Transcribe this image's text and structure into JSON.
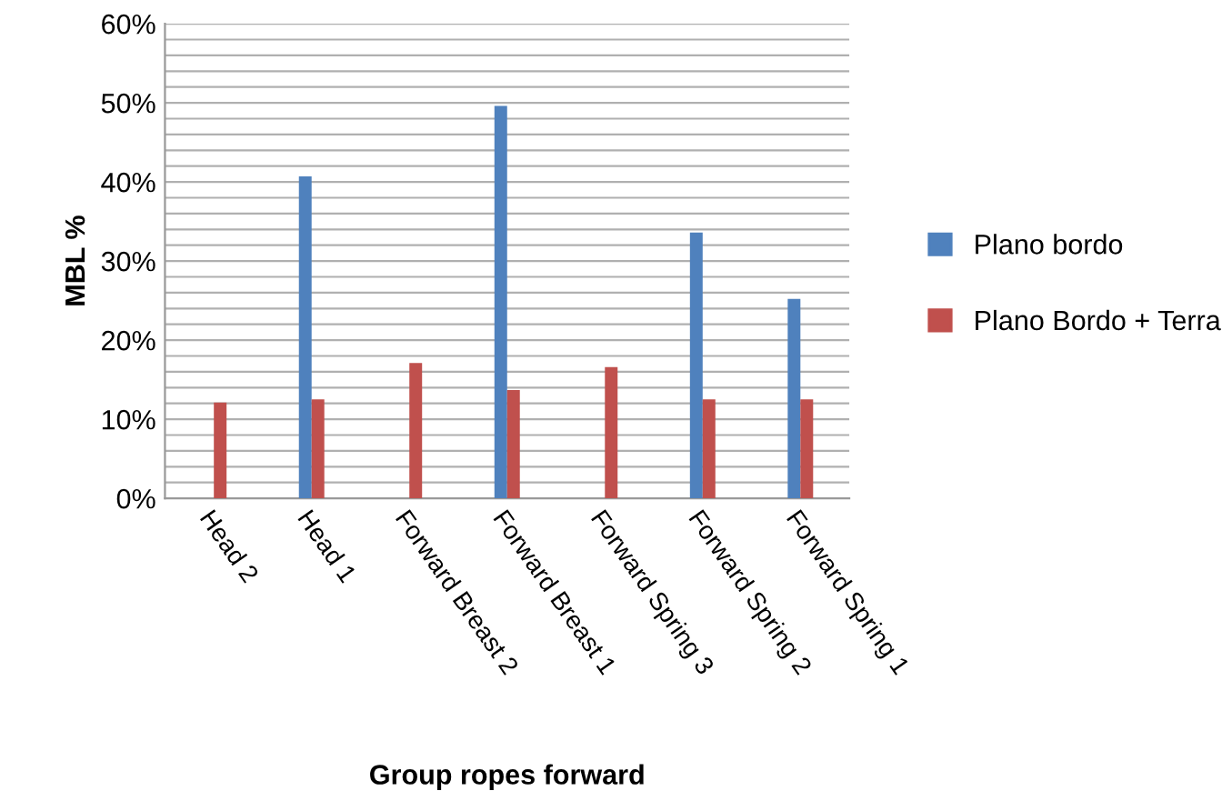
{
  "chart_data": {
    "type": "bar",
    "xlabel": "Group ropes forward",
    "ylabel": "MBL %",
    "categories": [
      "Head 2",
      "Head 1",
      "Forward Breast 2",
      "Forward Breast 1",
      "Forward Spring 3",
      "Forward Spring 2",
      "Forward Spring 1"
    ],
    "series": [
      {
        "name": "Plano bordo",
        "color": "#4f81bd",
        "values": [
          null,
          40.7,
          null,
          49.6,
          null,
          33.6,
          25.2
        ]
      },
      {
        "name": "Plano Bordo + Terra",
        "color": "#c0504d",
        "values": [
          12.1,
          12.5,
          17.1,
          13.7,
          16.6,
          12.5,
          12.5
        ]
      }
    ],
    "ylim": [
      0,
      60
    ],
    "yticks": [
      {
        "value": 0,
        "label": "0%"
      },
      {
        "value": 2,
        "label": null
      },
      {
        "value": 4,
        "label": null
      },
      {
        "value": 6,
        "label": null
      },
      {
        "value": 8,
        "label": null
      },
      {
        "value": 10,
        "label": "10%"
      },
      {
        "value": 12,
        "label": null
      },
      {
        "value": 14,
        "label": null
      },
      {
        "value": 16,
        "label": null
      },
      {
        "value": 18,
        "label": null
      },
      {
        "value": 20,
        "label": "20%"
      },
      {
        "value": 22,
        "label": null
      },
      {
        "value": 24,
        "label": null
      },
      {
        "value": 26,
        "label": null
      },
      {
        "value": 28,
        "label": null
      },
      {
        "value": 30,
        "label": "30%"
      },
      {
        "value": 32,
        "label": null
      },
      {
        "value": 34,
        "label": null
      },
      {
        "value": 36,
        "label": null
      },
      {
        "value": 38,
        "label": null
      },
      {
        "value": 40,
        "label": "40%"
      },
      {
        "value": 42,
        "label": null
      },
      {
        "value": 44,
        "label": null
      },
      {
        "value": 46,
        "label": null
      },
      {
        "value": 48,
        "label": null
      },
      {
        "value": 50,
        "label": "50%"
      },
      {
        "value": 52,
        "label": null
      },
      {
        "value": 54,
        "label": null
      },
      {
        "value": 56,
        "label": null
      },
      {
        "value": 58,
        "label": null
      },
      {
        "value": 60,
        "label": "60%"
      }
    ],
    "grid": "y",
    "legend": "right"
  }
}
